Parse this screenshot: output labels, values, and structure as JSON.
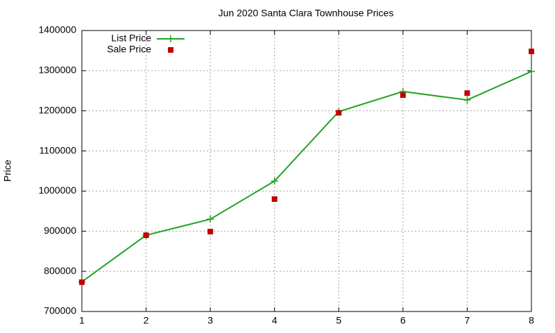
{
  "chart_data": {
    "type": "line",
    "title": "Jun 2020 Santa Clara Townhouse Prices",
    "y_label": "Price",
    "x": [
      1,
      2,
      3,
      4,
      5,
      6,
      7,
      8
    ],
    "series": [
      {
        "name": "List Price",
        "color": "#1fa31f",
        "style": "line-points",
        "values": [
          774000,
          890000,
          930000,
          1025000,
          1198000,
          1248000,
          1227000,
          1298000
        ]
      },
      {
        "name": "Sale Price",
        "color": "#c00000",
        "style": "points",
        "values": [
          773000,
          890000,
          899000,
          980000,
          1195000,
          1239000,
          1244000,
          1348000
        ]
      }
    ],
    "xlim": [
      1,
      8
    ],
    "xticks": [
      1,
      2,
      3,
      4,
      5,
      6,
      7,
      8
    ],
    "ylim": [
      700000,
      1400000
    ],
    "yticks": [
      700000,
      800000,
      900000,
      1000000,
      1100000,
      1200000,
      1300000,
      1400000
    ],
    "grid": true,
    "legend": "top-left"
  }
}
